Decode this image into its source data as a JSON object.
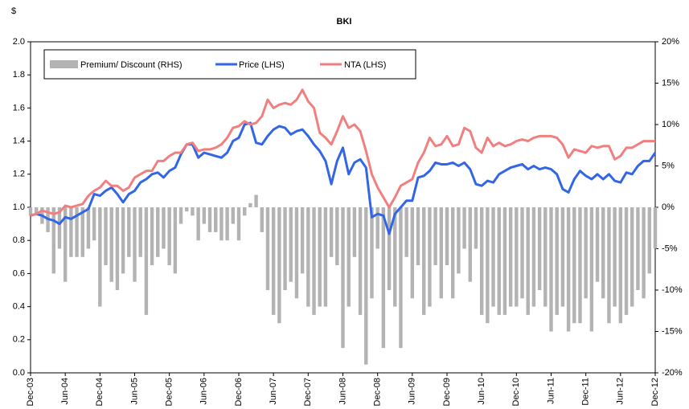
{
  "chart_data": {
    "type": "bar-line",
    "title": "BKI",
    "y_label": "$",
    "categories": [
      "Dec-03",
      null,
      null,
      null,
      null,
      null,
      "Jun-04",
      null,
      null,
      null,
      null,
      null,
      "Dec-04",
      null,
      null,
      null,
      null,
      null,
      "Jun-05",
      null,
      null,
      null,
      null,
      null,
      "Dec-05",
      null,
      null,
      null,
      null,
      null,
      "Jun-06",
      null,
      null,
      null,
      null,
      null,
      "Dec-06",
      null,
      null,
      null,
      null,
      null,
      "Jun-07",
      null,
      null,
      null,
      null,
      null,
      "Dec-07",
      null,
      null,
      null,
      null,
      null,
      "Jun-08",
      null,
      null,
      null,
      null,
      null,
      "Dec-08",
      null,
      null,
      null,
      null,
      null,
      "Jun-09",
      null,
      null,
      null,
      null,
      null,
      "Dec-09",
      null,
      null,
      null,
      null,
      null,
      "Jun-10",
      null,
      null,
      null,
      null,
      null,
      "Dec-10",
      null,
      null,
      null,
      null,
      null,
      "Jun-11",
      null,
      null,
      null,
      null,
      null,
      "Dec-11",
      null,
      null,
      null,
      null,
      null,
      "Jun-12",
      null,
      null,
      null,
      null,
      null,
      "Dec-12"
    ],
    "series": [
      {
        "name": "Premium/ Discount (RHS)",
        "type": "bar",
        "axis": "y2",
        "color": "#b3b3b3",
        "values": [
          -1,
          -1,
          -2,
          -3,
          -8,
          -5,
          -9,
          -6,
          -6,
          -6,
          -5,
          -4,
          -12,
          -7,
          -9,
          -10,
          -8,
          -6,
          -9,
          -6,
          -13,
          -7,
          -6,
          -5,
          -7,
          -8,
          -2,
          -0.5,
          -1,
          -4,
          -2,
          -3,
          -3,
          -4,
          -4,
          -2,
          -4,
          -1,
          0.5,
          1.5,
          -3,
          -10,
          -13,
          -14,
          -10,
          -9,
          -11,
          -8,
          -12,
          -13,
          -12,
          -12,
          -6,
          -7,
          -17,
          -12,
          -6,
          -13,
          -19,
          -11,
          -5,
          -17,
          -10,
          -12,
          -17,
          -6,
          -11,
          -7,
          -13,
          -12,
          -7,
          -11,
          -7,
          -11,
          -8,
          -5,
          -9,
          -5,
          -13,
          -14,
          -12,
          -13,
          -13,
          -12,
          -12,
          -11,
          -13,
          -12,
          -10,
          -12,
          -15,
          -13,
          -12,
          -15,
          -14,
          -14,
          -11,
          -15,
          -9,
          -11,
          -14,
          -12,
          -14,
          -13,
          -12,
          -10,
          -11,
          -8,
          -5
        ]
      },
      {
        "name": "Price (LHS)",
        "type": "line",
        "axis": "y",
        "color": "#3366e6",
        "values": [
          0.95,
          0.96,
          0.95,
          0.93,
          0.92,
          0.9,
          0.94,
          0.93,
          0.95,
          0.97,
          0.99,
          1.08,
          1.07,
          1.1,
          1.12,
          1.08,
          1.03,
          1.08,
          1.1,
          1.15,
          1.17,
          1.2,
          1.21,
          1.18,
          1.22,
          1.24,
          1.32,
          1.38,
          1.38,
          1.3,
          1.33,
          1.32,
          1.31,
          1.3,
          1.33,
          1.4,
          1.42,
          1.5,
          1.51,
          1.39,
          1.38,
          1.43,
          1.47,
          1.49,
          1.48,
          1.44,
          1.46,
          1.47,
          1.43,
          1.38,
          1.34,
          1.28,
          1.14,
          1.28,
          1.36,
          1.2,
          1.27,
          1.29,
          1.24,
          0.94,
          0.96,
          0.95,
          0.84,
          0.96,
          1.0,
          1.04,
          1.04,
          1.18,
          1.19,
          1.22,
          1.27,
          1.26,
          1.26,
          1.27,
          1.25,
          1.27,
          1.23,
          1.14,
          1.13,
          1.16,
          1.15,
          1.2,
          1.22,
          1.24,
          1.25,
          1.26,
          1.23,
          1.25,
          1.23,
          1.24,
          1.23,
          1.2,
          1.11,
          1.09,
          1.17,
          1.22,
          1.19,
          1.17,
          1.2,
          1.17,
          1.2,
          1.16,
          1.15,
          1.21,
          1.2,
          1.25,
          1.28,
          1.28,
          1.33
        ]
      },
      {
        "name": "NTA (LHS)",
        "type": "line",
        "axis": "y",
        "color": "#f08080",
        "values": [
          0.95,
          0.96,
          0.98,
          0.97,
          0.96,
          0.97,
          1.01,
          1.0,
          1.01,
          1.02,
          1.07,
          1.1,
          1.12,
          1.16,
          1.13,
          1.13,
          1.1,
          1.12,
          1.18,
          1.2,
          1.22,
          1.22,
          1.28,
          1.28,
          1.31,
          1.33,
          1.33,
          1.38,
          1.39,
          1.34,
          1.35,
          1.35,
          1.36,
          1.38,
          1.42,
          1.48,
          1.49,
          1.52,
          1.5,
          1.51,
          1.55,
          1.65,
          1.6,
          1.62,
          1.63,
          1.62,
          1.65,
          1.71,
          1.64,
          1.6,
          1.45,
          1.42,
          1.38,
          1.46,
          1.55,
          1.48,
          1.5,
          1.46,
          1.34,
          1.2,
          1.12,
          1.06,
          1.0,
          1.06,
          1.13,
          1.15,
          1.17,
          1.27,
          1.33,
          1.42,
          1.37,
          1.38,
          1.43,
          1.37,
          1.38,
          1.48,
          1.46,
          1.36,
          1.33,
          1.42,
          1.37,
          1.39,
          1.37,
          1.38,
          1.4,
          1.41,
          1.4,
          1.42,
          1.43,
          1.43,
          1.43,
          1.42,
          1.38,
          1.3,
          1.35,
          1.34,
          1.33,
          1.37,
          1.36,
          1.37,
          1.37,
          1.29,
          1.31,
          1.36,
          1.36,
          1.38,
          1.4,
          1.4,
          1.4
        ]
      }
    ],
    "ylim": [
      0,
      2
    ],
    "yticks": [
      {
        "value": 0,
        "label": "0.0"
      },
      0.2,
      0.4,
      0.6,
      0.8,
      {
        "value": 1,
        "label": "1.0"
      },
      1.2,
      1.4,
      1.6,
      1.8,
      {
        "value": 2,
        "label": "2.0"
      }
    ],
    "y2lim": [
      -20,
      20
    ],
    "y2ticks": [
      {
        "value": -20,
        "label": "-20%"
      },
      {
        "value": -15,
        "label": "-15%"
      },
      {
        "value": -10,
        "label": "-10%"
      },
      {
        "value": -5,
        "label": "-5%"
      },
      {
        "value": 0,
        "label": "0%"
      },
      {
        "value": 5,
        "label": "5%"
      },
      {
        "value": 10,
        "label": "10%"
      },
      {
        "value": 15,
        "label": "15%"
      },
      {
        "value": 20,
        "label": "20%"
      }
    ],
    "legend": "top-left",
    "grid": false
  }
}
